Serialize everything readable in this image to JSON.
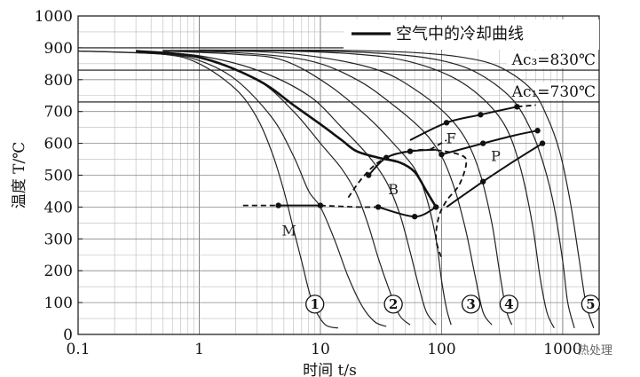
{
  "chart_data": {
    "type": "line",
    "xlabel": "时间 t/s",
    "ylabel": "温度 T/℃",
    "xscale": "log",
    "xlim": [
      0.1,
      2000
    ],
    "ylim": [
      0,
      1000
    ],
    "x_ticks": [
      {
        "value": 0.1,
        "label": "0.1"
      },
      {
        "value": 1,
        "label": "1"
      },
      {
        "value": 10,
        "label": "10"
      },
      {
        "value": 100,
        "label": "100"
      },
      {
        "value": 1000,
        "label": "1000"
      }
    ],
    "y_ticks": [
      {
        "value": 0,
        "label": "0"
      },
      {
        "value": 100,
        "label": "100"
      },
      {
        "value": 200,
        "label": "200"
      },
      {
        "value": 300,
        "label": "300"
      },
      {
        "value": 400,
        "label": "400"
      },
      {
        "value": 500,
        "label": "500"
      },
      {
        "value": 600,
        "label": "600"
      },
      {
        "value": 700,
        "label": "700"
      },
      {
        "value": 800,
        "label": "800"
      },
      {
        "value": 900,
        "label": "900"
      },
      {
        "value": 1000,
        "label": "1000"
      }
    ],
    "grid": true,
    "reference_lines": [
      {
        "y": 900,
        "label": ""
      },
      {
        "y": 830,
        "label": "Ac₃=830℃"
      },
      {
        "y": 730,
        "label": "Ac₁=730℃"
      }
    ],
    "legend": {
      "label": "空气中的冷却曲线",
      "position": "top-right"
    },
    "cooling_curves": [
      {
        "points": [
          [
            0.1,
            890
          ],
          [
            0.5,
            880
          ],
          [
            1,
            850
          ],
          [
            2,
            770
          ],
          [
            3,
            680
          ],
          [
            4,
            570
          ],
          [
            5,
            450
          ],
          [
            6,
            330
          ],
          [
            7,
            230
          ],
          [
            8,
            140
          ],
          [
            9,
            80
          ],
          [
            11,
            30
          ],
          [
            14,
            20
          ]
        ]
      },
      {
        "points": [
          [
            0.1,
            890
          ],
          [
            0.5,
            880
          ],
          [
            1,
            860
          ],
          [
            2,
            800
          ],
          [
            4,
            680
          ],
          [
            6,
            560
          ],
          [
            8,
            450
          ],
          [
            10,
            400
          ],
          [
            13,
            300
          ],
          [
            17,
            180
          ],
          [
            22,
            90
          ],
          [
            28,
            40
          ],
          [
            35,
            25
          ]
        ]
      },
      {
        "points": [
          [
            0.3,
            890
          ],
          [
            1,
            870
          ],
          [
            3,
            800
          ],
          [
            6,
            700
          ],
          [
            10,
            600
          ],
          [
            15,
            520
          ],
          [
            20,
            440
          ],
          [
            25,
            340
          ],
          [
            30,
            240
          ],
          [
            37,
            140
          ],
          [
            45,
            60
          ],
          [
            55,
            30
          ]
        ]
      },
      {
        "points": [
          [
            0.3,
            890
          ],
          [
            1,
            875
          ],
          [
            3,
            830
          ],
          [
            8,
            750
          ],
          [
            15,
            650
          ],
          [
            25,
            560
          ],
          [
            35,
            480
          ],
          [
            45,
            380
          ],
          [
            55,
            260
          ],
          [
            65,
            150
          ],
          [
            75,
            70
          ],
          [
            90,
            30
          ]
        ]
      },
      {
        "points": [
          [
            0.5,
            890
          ],
          [
            2,
            880
          ],
          [
            5,
            860
          ],
          [
            12,
            780
          ],
          [
            25,
            680
          ],
          [
            40,
            600
          ],
          [
            60,
            520
          ],
          [
            75,
            430
          ],
          [
            90,
            300
          ],
          [
            100,
            170
          ],
          [
            110,
            80
          ],
          [
            120,
            30
          ]
        ]
      },
      {
        "points": [
          [
            0.5,
            890
          ],
          [
            2,
            885
          ],
          [
            8,
            860
          ],
          [
            20,
            800
          ],
          [
            40,
            720
          ],
          [
            70,
            640
          ],
          [
            100,
            560
          ],
          [
            130,
            450
          ],
          [
            160,
            320
          ],
          [
            190,
            180
          ],
          [
            220,
            70
          ],
          [
            260,
            30
          ]
        ]
      },
      {
        "points": [
          [
            0.5,
            890
          ],
          [
            3,
            888
          ],
          [
            10,
            870
          ],
          [
            30,
            830
          ],
          [
            60,
            770
          ],
          [
            110,
            690
          ],
          [
            160,
            610
          ],
          [
            210,
            500
          ],
          [
            260,
            350
          ],
          [
            300,
            200
          ],
          [
            340,
            80
          ],
          [
            380,
            30
          ]
        ]
      },
      {
        "points": [
          [
            0.5,
            892
          ],
          [
            5,
            890
          ],
          [
            20,
            880
          ],
          [
            50,
            860
          ],
          [
            120,
            810
          ],
          [
            220,
            740
          ],
          [
            340,
            650
          ],
          [
            450,
            520
          ],
          [
            560,
            350
          ],
          [
            650,
            180
          ],
          [
            740,
            70
          ],
          [
            850,
            20
          ]
        ]
      },
      {
        "points": [
          [
            1,
            892
          ],
          [
            10,
            890
          ],
          [
            40,
            880
          ],
          [
            100,
            860
          ],
          [
            200,
            820
          ],
          [
            380,
            740
          ],
          [
            550,
            640
          ],
          [
            700,
            530
          ],
          [
            850,
            400
          ],
          [
            1000,
            230
          ],
          [
            1100,
            100
          ],
          [
            1250,
            20
          ]
        ]
      },
      {
        "points": [
          [
            1,
            893
          ],
          [
            15,
            892
          ],
          [
            60,
            885
          ],
          [
            150,
            870
          ],
          [
            300,
            840
          ],
          [
            550,
            770
          ],
          [
            750,
            680
          ],
          [
            950,
            570
          ],
          [
            1150,
            420
          ],
          [
            1350,
            250
          ],
          [
            1550,
            100
          ],
          [
            1800,
            20
          ]
        ]
      }
    ],
    "highlight_curve": {
      "points": [
        [
          0.3,
          890
        ],
        [
          1,
          870
        ],
        [
          3,
          800
        ],
        [
          6,
          720
        ],
        [
          10,
          660
        ],
        [
          15,
          610
        ],
        [
          20,
          575
        ],
        [
          30,
          555
        ],
        [
          45,
          540
        ],
        [
          60,
          510
        ],
        [
          75,
          450
        ],
        [
          90,
          400
        ]
      ]
    },
    "transformation_lines": [
      {
        "style": "solid",
        "points": [
          [
            4.5,
            405
          ],
          [
            10,
            405
          ]
        ]
      },
      {
        "style": "solid",
        "points": [
          [
            25,
            500
          ],
          [
            35,
            555
          ],
          [
            55,
            575
          ],
          [
            90,
            580
          ]
        ]
      },
      {
        "style": "solid",
        "points": [
          [
            30,
            400
          ],
          [
            60,
            370
          ],
          [
            90,
            400
          ]
        ]
      },
      {
        "style": "solid",
        "points": [
          [
            55,
            610
          ],
          [
            110,
            665
          ],
          [
            210,
            690
          ],
          [
            420,
            715
          ]
        ]
      },
      {
        "style": "solid",
        "points": [
          [
            100,
            565
          ],
          [
            220,
            600
          ],
          [
            400,
            625
          ],
          [
            620,
            640
          ]
        ]
      },
      {
        "style": "solid",
        "points": [
          [
            110,
            400
          ],
          [
            220,
            480
          ],
          [
            400,
            545
          ],
          [
            680,
            600
          ]
        ]
      },
      {
        "style": "dashed",
        "points": [
          [
            2.3,
            405
          ],
          [
            4.5,
            405
          ]
        ]
      },
      {
        "style": "dashed",
        "points": [
          [
            10,
            405
          ],
          [
            20,
            400
          ],
          [
            30,
            400
          ]
        ]
      },
      {
        "style": "dashed",
        "points": [
          [
            17,
            430
          ],
          [
            22,
            490
          ],
          [
            30,
            540
          ],
          [
            45,
            570
          ],
          [
            80,
            580
          ],
          [
            140,
            565
          ],
          [
            160,
            540
          ],
          [
            140,
            470
          ],
          [
            110,
            420
          ],
          [
            95,
            370
          ],
          [
            90,
            300
          ],
          [
            100,
            240
          ]
        ]
      },
      {
        "style": "dashed",
        "points": [
          [
            420,
            715
          ],
          [
            600,
            720
          ]
        ]
      },
      {
        "style": "dashed",
        "points": [
          [
            80,
            580
          ],
          [
            110,
            610
          ]
        ]
      }
    ],
    "markers": [
      [
        4.5,
        405
      ],
      [
        10,
        405
      ],
      [
        25,
        500
      ],
      [
        35,
        555
      ],
      [
        55,
        575
      ],
      [
        30,
        400
      ],
      [
        60,
        370
      ],
      [
        90,
        400
      ],
      [
        110,
        665
      ],
      [
        210,
        690
      ],
      [
        420,
        715
      ],
      [
        100,
        565
      ],
      [
        220,
        600
      ],
      [
        620,
        640
      ],
      [
        220,
        480
      ],
      [
        680,
        600
      ]
    ],
    "region_labels": [
      {
        "text": "M",
        "x": 5.5,
        "y": 310
      },
      {
        "text": "B",
        "x": 40,
        "y": 440
      },
      {
        "text": "F",
        "x": 120,
        "y": 600
      },
      {
        "text": "P",
        "x": 280,
        "y": 545
      }
    ],
    "curve_numbers": [
      {
        "text": "1",
        "x": 9,
        "y": 95
      },
      {
        "text": "2",
        "x": 40,
        "y": 95
      },
      {
        "text": "3",
        "x": 175,
        "y": 95
      },
      {
        "text": "4",
        "x": 360,
        "y": 95
      },
      {
        "text": "5",
        "x": 1700,
        "y": 95
      }
    ]
  },
  "watermark": {
    "text": "热处理"
  }
}
